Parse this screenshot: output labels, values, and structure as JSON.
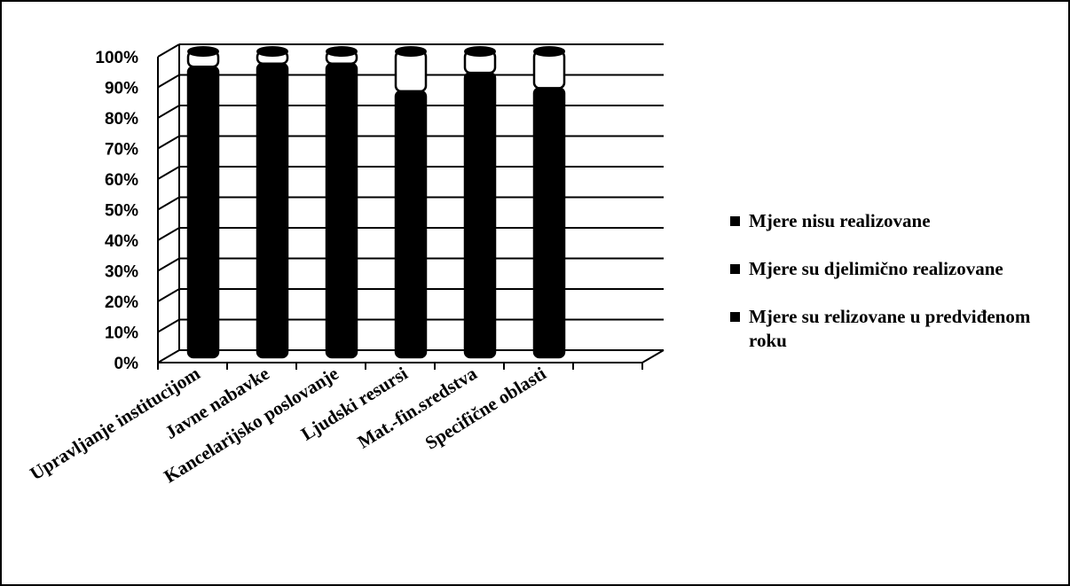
{
  "chart_data": {
    "type": "bar",
    "stacked": true,
    "percent_stacked": true,
    "three_d": true,
    "categories": [
      "Upravljanje institucijom",
      "Javne nabavke",
      "Kancelarijsko poslovanje",
      "Ljudski resursi",
      "Mat.-fin.sredstva",
      "Specifične oblasti"
    ],
    "series": [
      {
        "name": "Mjere su relizovane u predviđenom roku",
        "values": [
          95,
          96,
          96,
          87,
          93,
          88
        ],
        "color": "#000000"
      },
      {
        "name": "Mjere su djelimično realizovane",
        "values": [
          5,
          4,
          4,
          13,
          7,
          12
        ],
        "color": "#ffffff"
      },
      {
        "name": "Mjere nisu realizovane",
        "values": [
          0,
          0,
          0,
          0,
          0,
          0
        ],
        "color": "#000000"
      }
    ],
    "ylim": [
      0,
      100
    ],
    "y_ticks": [
      "0%",
      "10%",
      "20%",
      "30%",
      "40%",
      "50%",
      "60%",
      "70%",
      "80%",
      "90%",
      "100%"
    ],
    "grid": true,
    "legend_position": "right"
  },
  "legend": {
    "items": [
      "Mjere nisu realizovane",
      "Mjere su djelimično realizovane",
      "Mjere su relizovane u predviđenom roku"
    ]
  }
}
